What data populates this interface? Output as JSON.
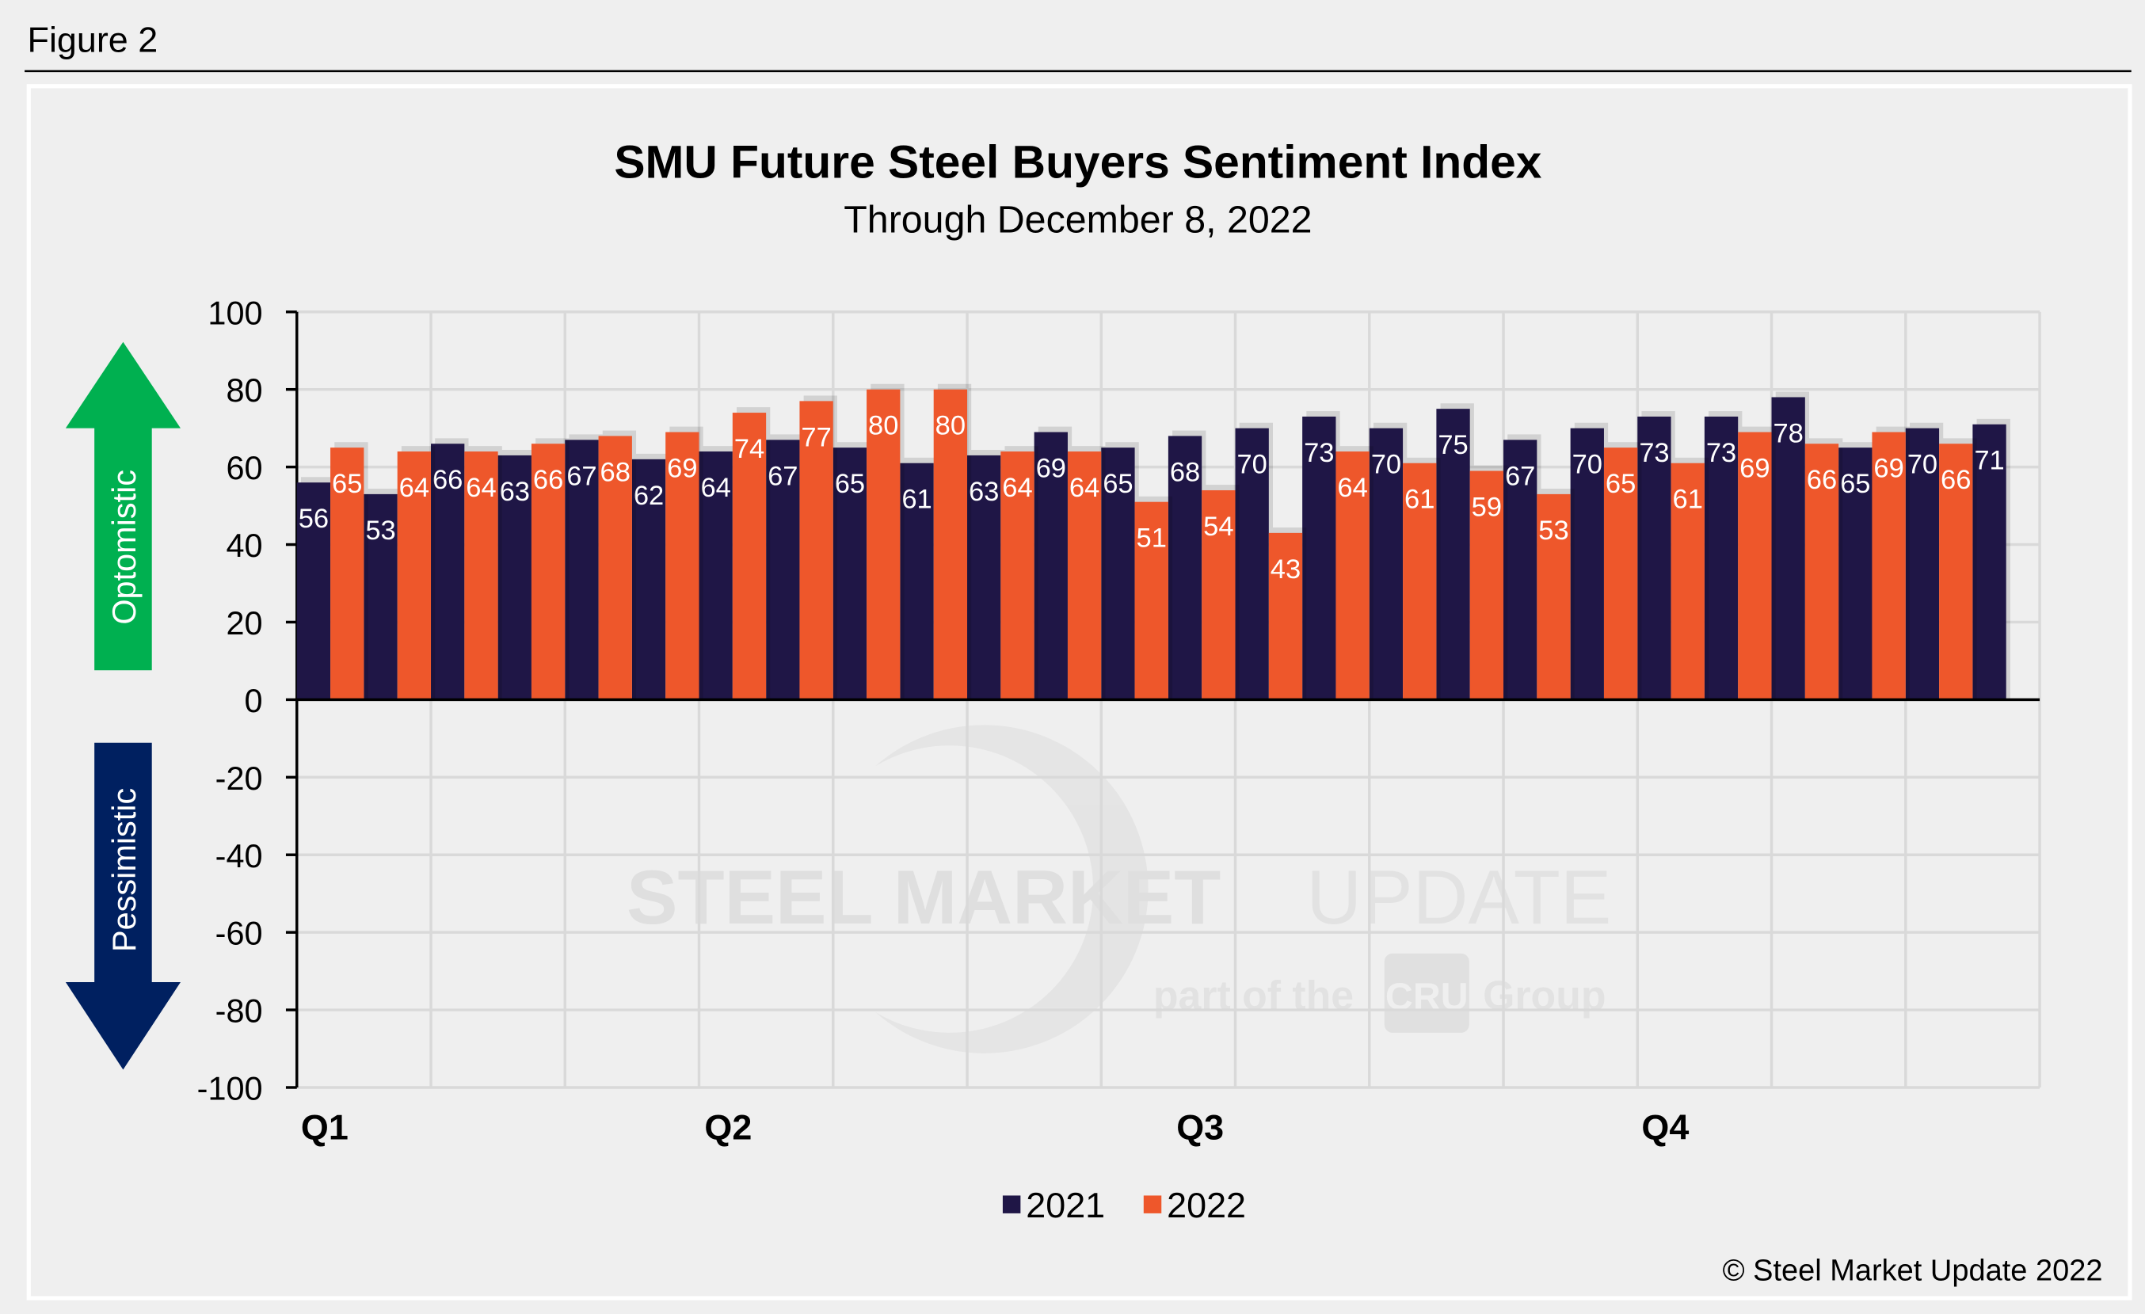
{
  "figure_label": "Figure 2",
  "copyright": "© Steel Market Update 2022",
  "watermark": {
    "main_bold": "STEEL MARKET",
    "main_light": "UPDATE",
    "sub_left": "part of the",
    "sub_logo": "CRU",
    "sub_right": "Group"
  },
  "arrows": {
    "up_label": "Optomistic",
    "down_label": "Pessimistic",
    "up_color": "#00b050",
    "down_color": "#002060"
  },
  "chart_data": {
    "type": "bar",
    "title": "SMU Future Steel Buyers Sentiment Index",
    "subtitle": "Through December 8, 2022",
    "ylim": [
      -100,
      100
    ],
    "yticks": [
      100,
      80,
      60,
      40,
      20,
      0,
      -20,
      -40,
      -60,
      -80,
      -100
    ],
    "x_labels": [
      "Q1",
      "Q2",
      "Q3",
      "Q4"
    ],
    "grid": true,
    "legend_position": "bottom",
    "series": [
      {
        "name": "2021",
        "color": "#1f1646",
        "values": [
          56,
          53,
          66,
          63,
          67,
          62,
          64,
          67,
          65,
          61,
          63,
          69,
          65,
          68,
          70,
          73,
          70,
          75,
          67,
          70,
          73,
          73,
          78,
          65,
          70,
          71
        ]
      },
      {
        "name": "2022",
        "color": "#ee572b",
        "values": [
          65,
          64,
          64,
          66,
          68,
          69,
          74,
          77,
          80,
          80,
          64,
          64,
          51,
          54,
          43,
          64,
          61,
          59,
          53,
          65,
          61,
          69,
          66,
          69,
          66,
          null
        ]
      }
    ]
  }
}
